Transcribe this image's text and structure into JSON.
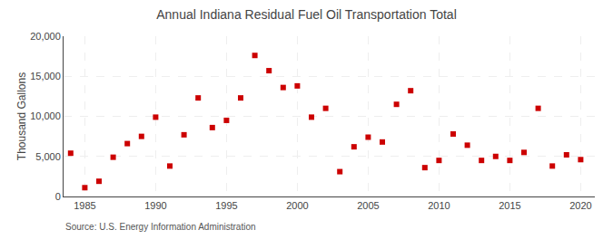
{
  "chart_data": {
    "type": "scatter",
    "title": "Annual Indiana Residual Fuel Oil Transportation Total",
    "ylabel": "Thousand Gallons",
    "annotation": "Source: U.S. Energy Information Administration",
    "color": "#cc0000",
    "marker": "square",
    "x": [
      1984,
      1985,
      1986,
      1987,
      1988,
      1989,
      1990,
      1991,
      1992,
      1993,
      1994,
      1995,
      1996,
      1997,
      1998,
      1999,
      2000,
      2001,
      2002,
      2003,
      2004,
      2005,
      2006,
      2007,
      2008,
      2009,
      2010,
      2011,
      2012,
      2013,
      2014,
      2015,
      2016,
      2017,
      2018,
      2019,
      2020
    ],
    "values": [
      5400,
      1100,
      1900,
      4900,
      6600,
      7500,
      9900,
      3800,
      7700,
      12300,
      8600,
      9500,
      12300,
      17600,
      15700,
      13600,
      13800,
      9900,
      11000,
      3100,
      6200,
      7400,
      6800,
      11500,
      13200,
      3600,
      4500,
      7800,
      6400,
      4500,
      5000,
      4500,
      5500,
      11000,
      3800,
      5200,
      4600
    ],
    "xlim": [
      1983.5,
      2021
    ],
    "ylim": [
      0,
      20000
    ],
    "xticks": [
      1985,
      1990,
      1995,
      2000,
      2005,
      2010,
      2015,
      2020
    ],
    "yticks": [
      0,
      {
        "value": 5000,
        "label": "5,000"
      },
      {
        "value": 10000,
        "label": "10,000"
      },
      {
        "value": 15000,
        "label": "15,000"
      },
      {
        "value": 20000,
        "label": "20,000"
      }
    ],
    "grid": true
  }
}
